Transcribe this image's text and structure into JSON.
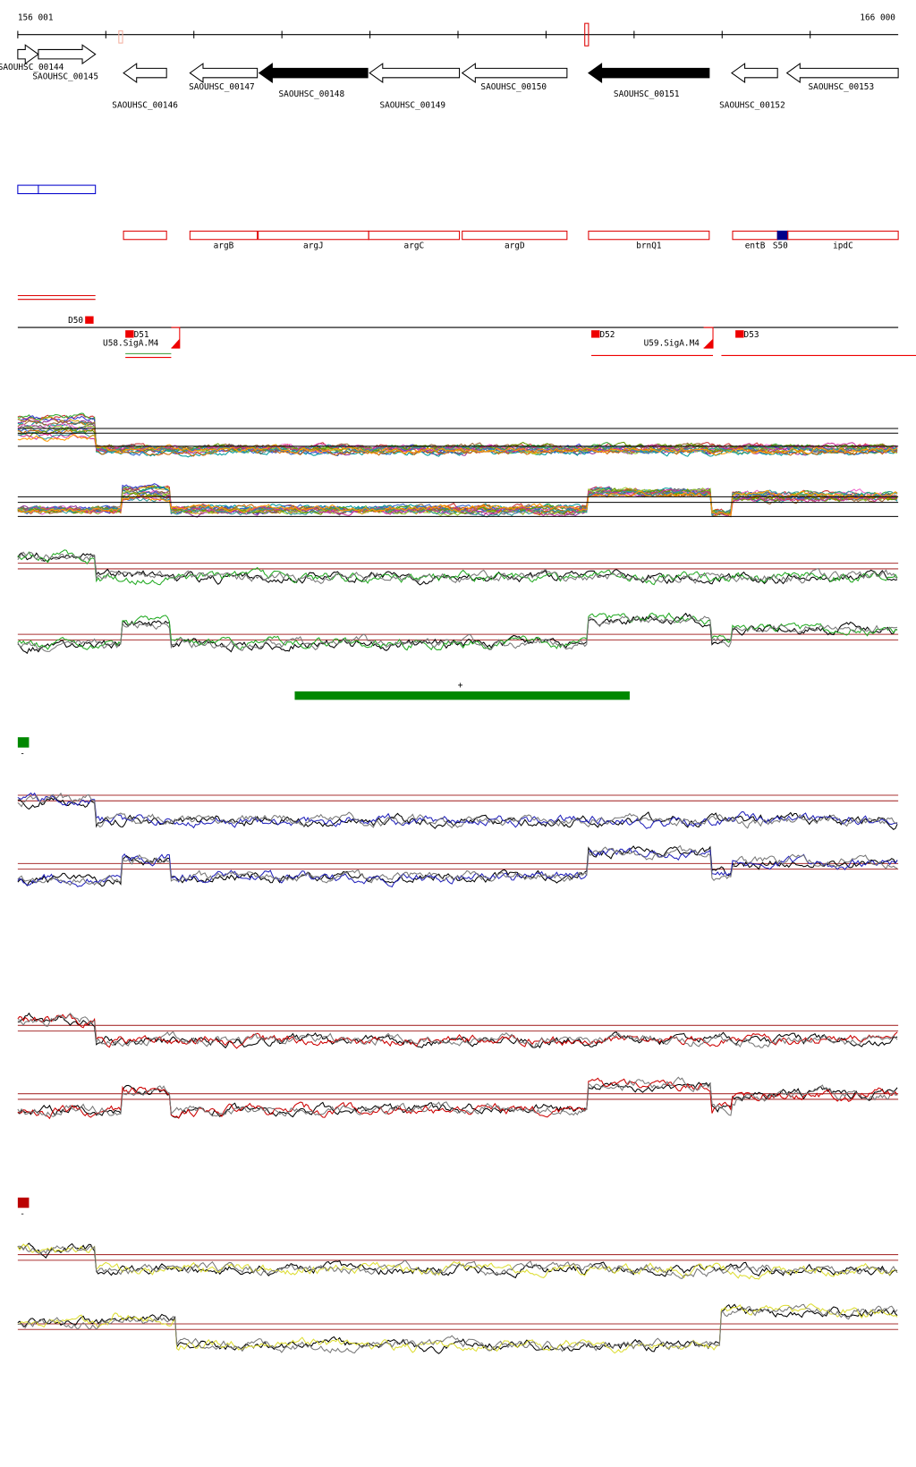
{
  "axis": {
    "start": "156 001",
    "end": "166 000"
  },
  "genes": [
    "SAOUHSC_00144",
    "SAOUHSC_00145",
    "SAOUHSC_00146",
    "SAOUHSC_00147",
    "SAOUHSC_00148",
    "SAOUHSC_00149",
    "SAOUHSC_00150",
    "SAOUHSC_00151",
    "SAOUHSC_00152",
    "SAOUHSC_00153"
  ],
  "features": [
    "argB",
    "argJ",
    "argC",
    "argD",
    "brnQ1",
    "entB",
    "S50",
    "ipdC"
  ],
  "sites": [
    "D50",
    "D51",
    "D52",
    "D53"
  ],
  "motifs": [
    "U58.SigA.M4",
    "U59.SigA.M4"
  ],
  "strand_plus": "+",
  "strand_minus": [
    "-",
    "-"
  ]
}
